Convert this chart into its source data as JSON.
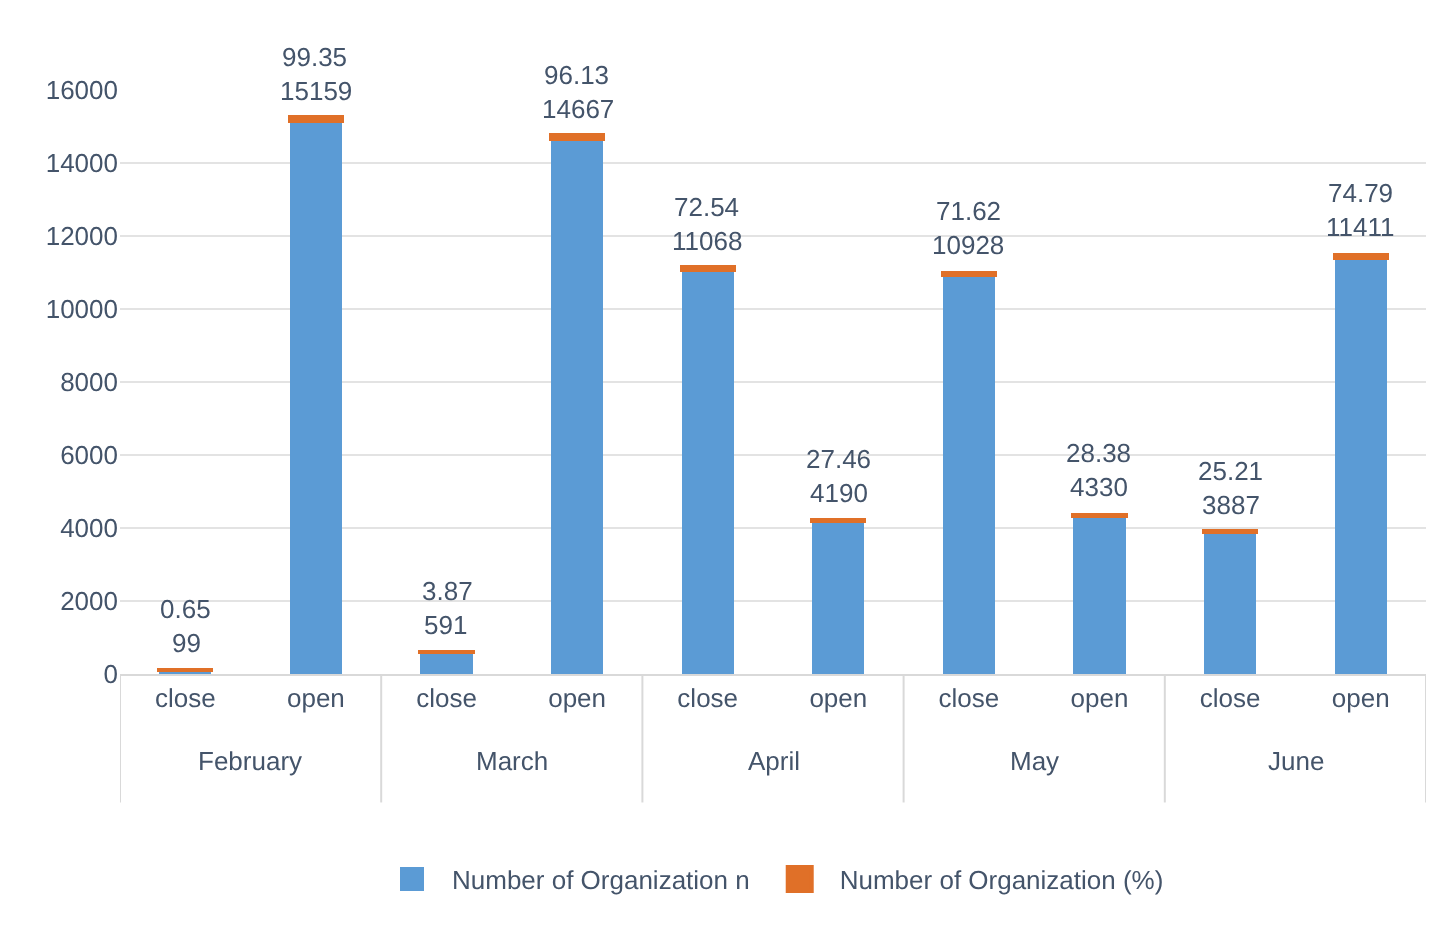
{
  "chart_data": {
    "type": "bar",
    "stacked": true,
    "categories": [
      "close",
      "open",
      "close",
      "open",
      "close",
      "open",
      "close",
      "open",
      "close",
      "open"
    ],
    "annotations": [
      "February",
      "March",
      "April",
      "May",
      "June"
    ],
    "series": [
      {
        "name": "Number of Organization n",
        "color": "#5b9bd5",
        "values": [
          99,
          15159,
          591,
          14667,
          11068,
          4190,
          10928,
          4330,
          3887,
          11411
        ]
      },
      {
        "name": "Number of Organization (%)",
        "color": "#e07028",
        "values": [
          0.65,
          99.35,
          3.87,
          96.13,
          72.54,
          27.46,
          71.62,
          28.38,
          25.21,
          74.79
        ]
      }
    ],
    "ylim": [
      0,
      16000
    ],
    "yticks": [
      0,
      2000,
      4000,
      6000,
      8000,
      10000,
      12000,
      14000,
      16000
    ],
    "grid": "y",
    "legend": "bottom",
    "data_labels": true
  }
}
